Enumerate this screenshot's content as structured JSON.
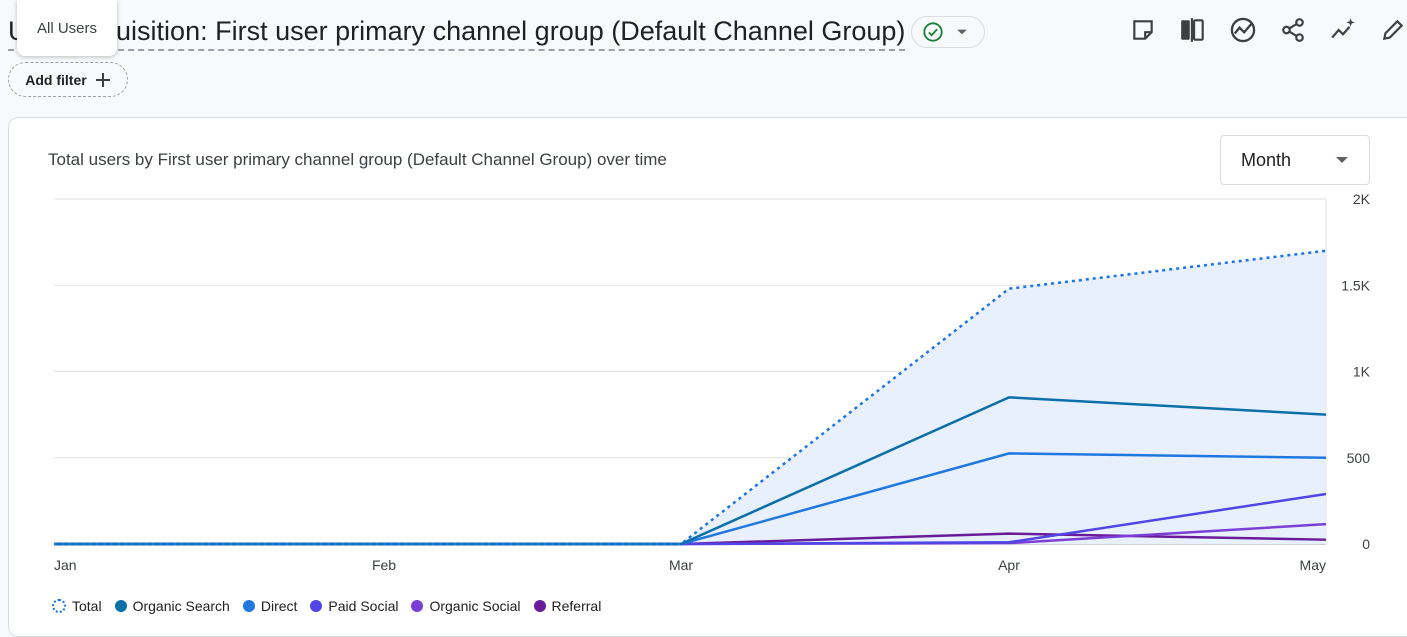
{
  "page": {
    "title": "User acquisition: First user primary channel group (Default Channel Group)",
    "tooltip": "All Users",
    "add_filter": "Add filter"
  },
  "toolbar": {
    "icons": [
      "note-icon",
      "compare-icon",
      "insights-icon",
      "share-icon",
      "sparkle-icon",
      "edit-icon"
    ]
  },
  "card": {
    "title": "Total users by First user primary channel group (Default Channel Group) over time",
    "granularity": "Month"
  },
  "colors": {
    "total": "#1a73e8",
    "organic_search": "#0b6fa8",
    "direct": "#1f78e0",
    "paid_social": "#4f46e5",
    "organic_social": "#7b3fd6",
    "referral": "#6a1b9a",
    "area": "#e8f0fe",
    "status_ok": "#188038"
  },
  "chart_data": {
    "type": "line",
    "title": "Total users by First user primary channel group (Default Channel Group) over time",
    "categories": [
      "Jan",
      "Feb",
      "Mar",
      "Apr",
      "May"
    ],
    "x": [
      0,
      1,
      2,
      3,
      4
    ],
    "x_positions_note": "",
    "ylim": [
      0,
      2000
    ],
    "yticks": [
      0,
      500,
      1000,
      1500,
      2000
    ],
    "ytick_labels": [
      "0",
      "500",
      "1K",
      "1.5K",
      "2K"
    ],
    "grid": true,
    "legend": "bottom-left",
    "series": [
      {
        "name": "Total",
        "key": "total",
        "style": "dotted",
        "values": [
          0,
          0,
          0,
          1480,
          1700
        ]
      },
      {
        "name": "Organic Search",
        "key": "organic_search",
        "values": [
          0,
          0,
          0,
          850,
          750
        ]
      },
      {
        "name": "Direct",
        "key": "direct",
        "values": [
          0,
          0,
          0,
          525,
          500
        ]
      },
      {
        "name": "Paid Social",
        "key": "paid_social",
        "values": [
          0,
          0,
          0,
          10,
          290
        ]
      },
      {
        "name": "Organic Social",
        "key": "organic_social",
        "values": [
          0,
          0,
          0,
          5,
          115
        ]
      },
      {
        "name": "Referral",
        "key": "referral",
        "values": [
          0,
          0,
          0,
          60,
          25
        ]
      }
    ]
  }
}
